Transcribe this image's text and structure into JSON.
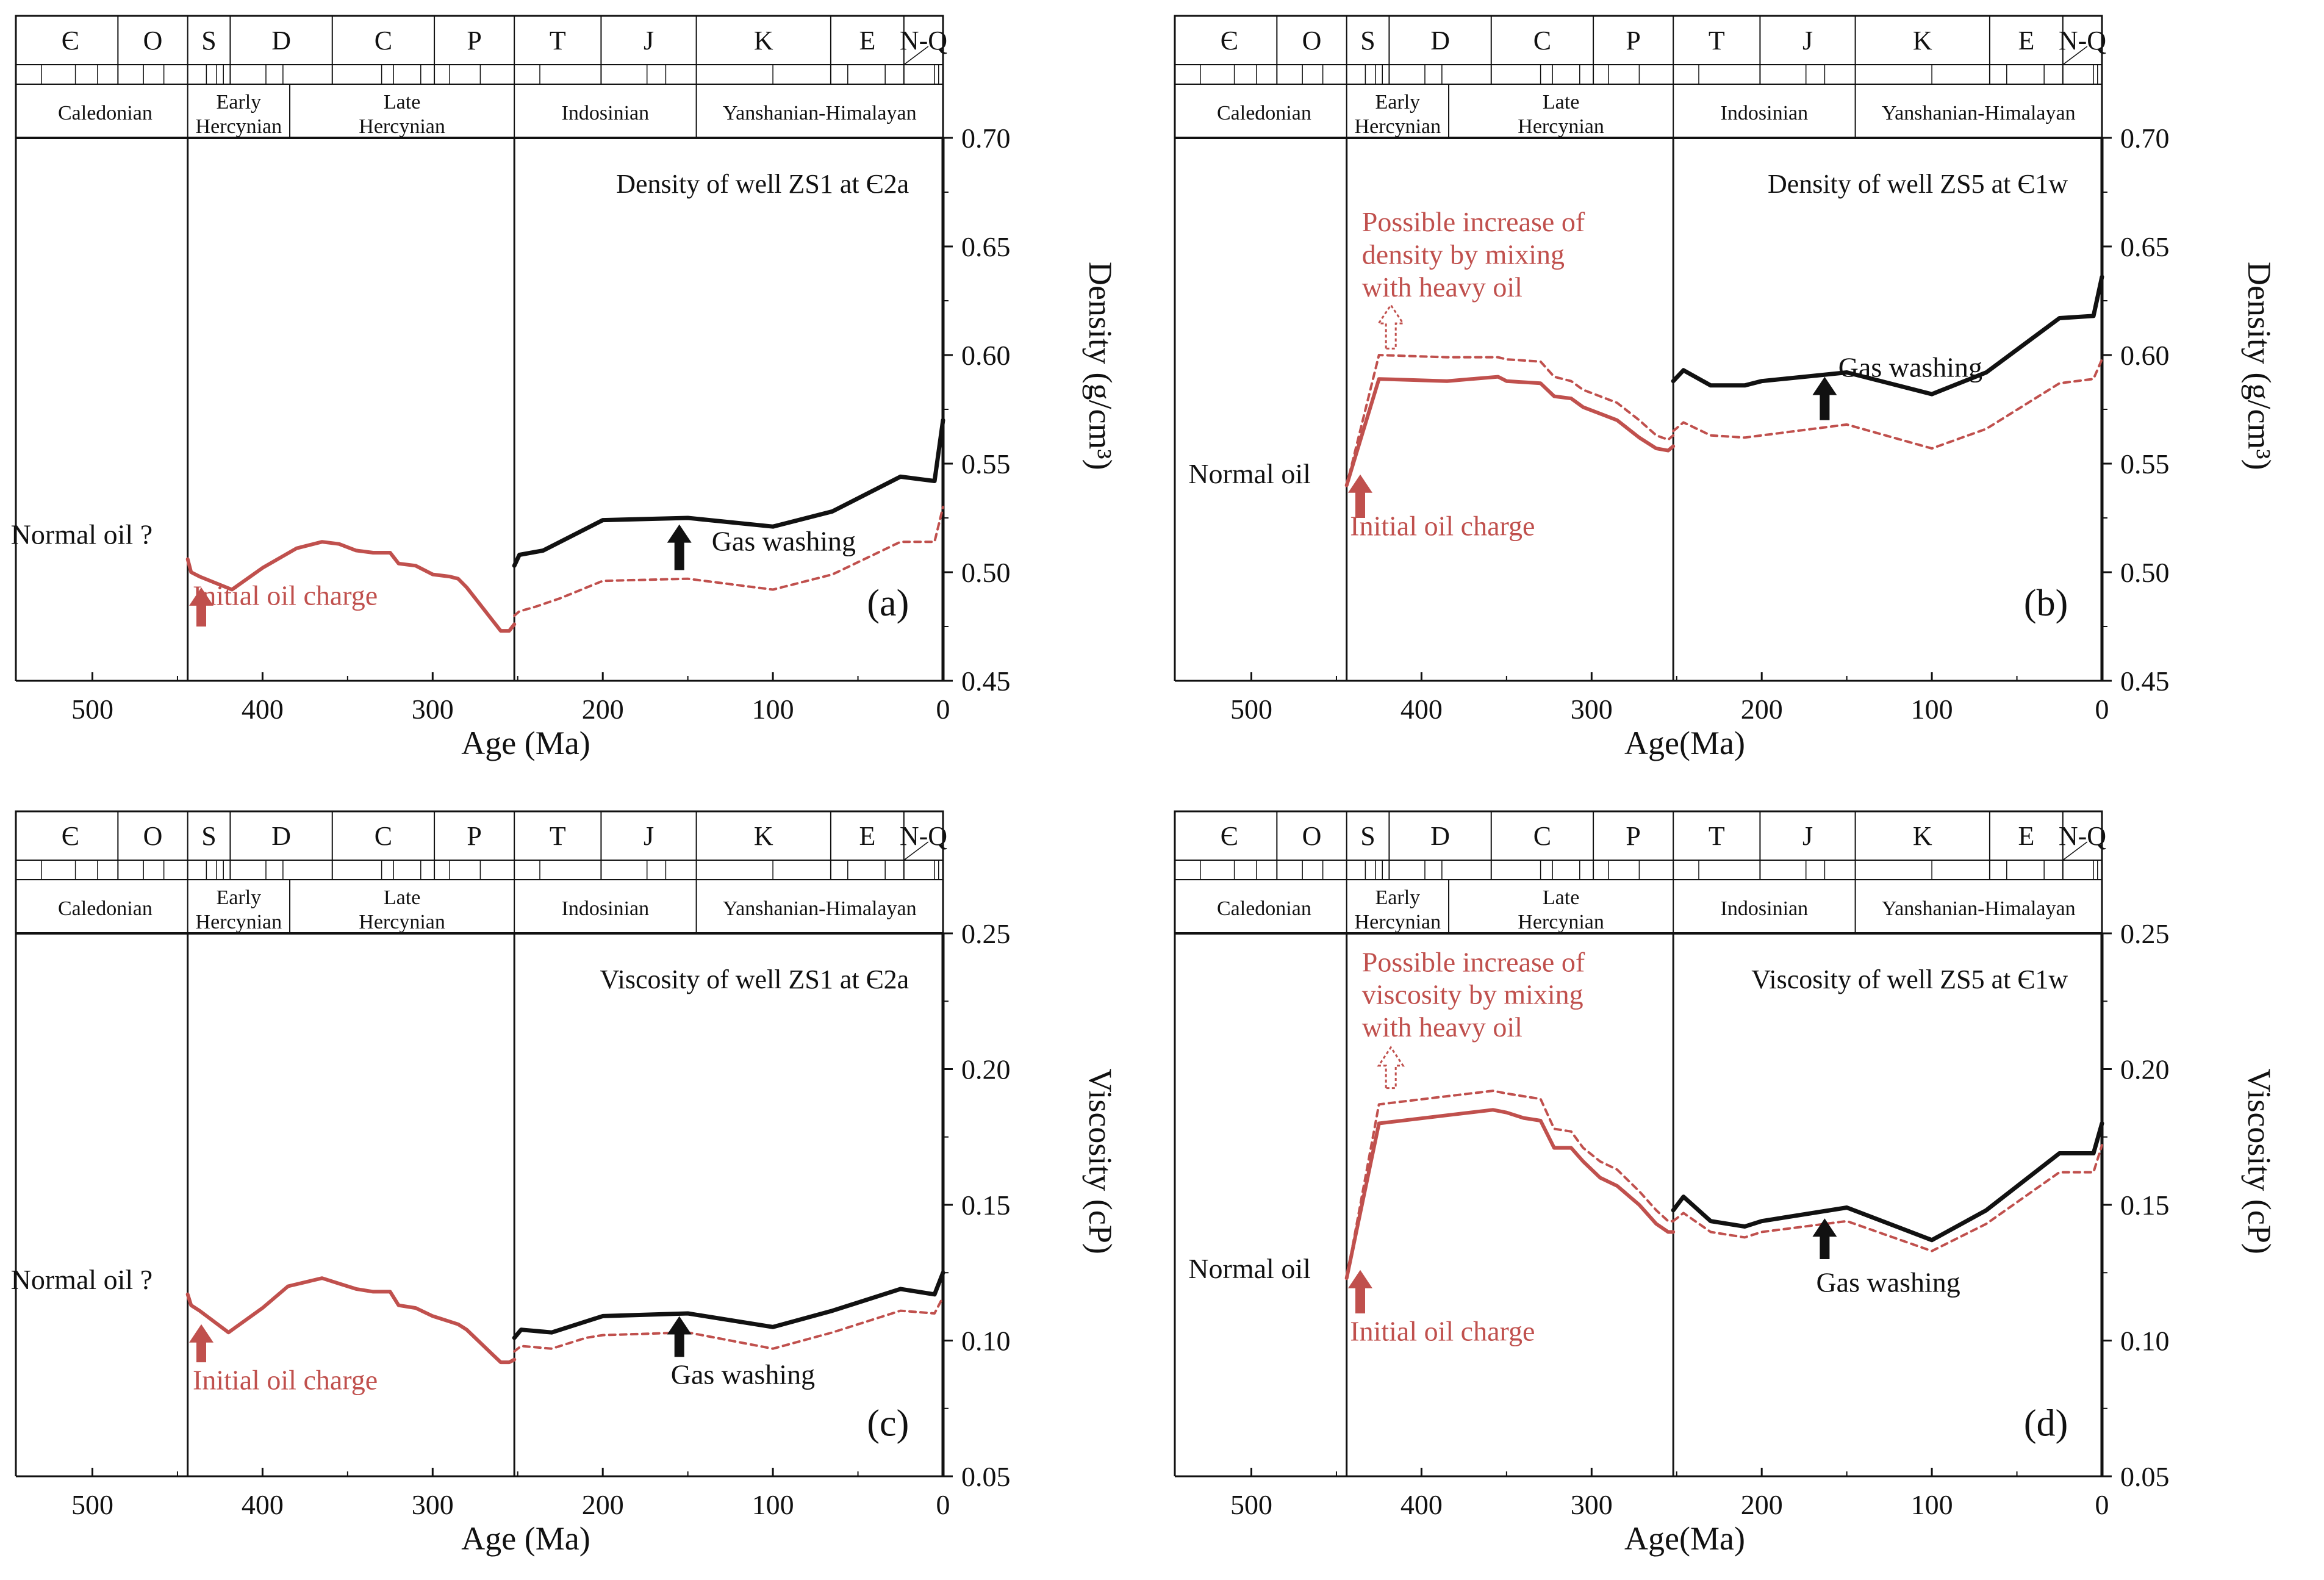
{
  "colors": {
    "black": "#111111",
    "red": "#c0504d"
  },
  "chart_data": [
    {
      "panel": "a",
      "type": "line",
      "title": "Density of well ZS1 at Є2a",
      "xlabel": "Age (Ma)",
      "ylabel": "Density (g/cm³)",
      "xlim": [
        545,
        0
      ],
      "ylim": [
        0.45,
        0.7
      ],
      "xticks": [
        500,
        400,
        300,
        200,
        100,
        0
      ],
      "yticks": [
        0.45,
        0.5,
        0.55,
        0.6,
        0.65,
        0.7
      ],
      "ytick_labels": [
        "0.45",
        "0.50",
        "0.55",
        "0.60",
        "0.65",
        "0.70"
      ],
      "periods": [
        "Є",
        "O",
        "S",
        "D",
        "C",
        "P",
        "T",
        "J",
        "K",
        "E",
        "N-Q"
      ],
      "orogenies": [
        "Caledonian",
        "Early Hercynian",
        "Late Hercynian",
        "Indosinian",
        "Yanshanian-Himalayan"
      ],
      "vlines": [
        444,
        252
      ],
      "series": [
        {
          "name": "Initial oil (solid red)",
          "style": "red-solid",
          "x": [
            444,
            442,
            437,
            418,
            400,
            380,
            365,
            355,
            345,
            335,
            325,
            320,
            310,
            300,
            290,
            285,
            280,
            270,
            265,
            260,
            255,
            252
          ],
          "y": [
            0.506,
            0.5,
            0.498,
            0.492,
            0.502,
            0.511,
            0.514,
            0.513,
            0.51,
            0.509,
            0.509,
            0.504,
            0.503,
            0.499,
            0.498,
            0.497,
            0.493,
            0.483,
            0.478,
            0.473,
            0.473,
            0.476
          ]
        },
        {
          "name": "After gas washing (solid black)",
          "style": "black-solid",
          "x": [
            252,
            249,
            235,
            200,
            150,
            100,
            65,
            25,
            5,
            0
          ],
          "y": [
            0.503,
            0.508,
            0.51,
            0.524,
            0.525,
            0.521,
            0.528,
            0.544,
            0.542,
            0.57
          ]
        },
        {
          "name": "Without gas washing (dashed red)",
          "style": "red-dashed",
          "x": [
            252,
            249,
            240,
            225,
            200,
            150,
            100,
            65,
            25,
            5,
            0
          ],
          "y": [
            0.48,
            0.482,
            0.484,
            0.488,
            0.496,
            0.497,
            0.492,
            0.499,
            0.514,
            0.514,
            0.53
          ]
        }
      ],
      "annotations": [
        {
          "name": "normal-oil",
          "text": "Normal oil ?",
          "x": 548,
          "y": 0.513,
          "anchor": "start",
          "color": "black"
        },
        {
          "name": "initial-oil-charge",
          "text": "Initial oil charge",
          "x": 441,
          "y": 0.485,
          "anchor": "start",
          "color": "red"
        },
        {
          "name": "gas-washing",
          "text": "Gas washing",
          "x": 136,
          "y": 0.51,
          "anchor": "start",
          "color": "black"
        },
        {
          "name": "panel-letter",
          "text": "(a)",
          "x": 20,
          "y": 0.48,
          "anchor": "end",
          "color": "black"
        }
      ],
      "arrows": [
        {
          "name": "initial-oil-charge-arrow",
          "style": "red-solid",
          "x": 436,
          "y_base": 0.475,
          "y_tip": 0.493
        },
        {
          "name": "gas-washing-arrow",
          "style": "black-solid",
          "x": 155,
          "y_base": 0.501,
          "y_tip": 0.522
        }
      ]
    },
    {
      "panel": "b",
      "type": "line",
      "title": "Density of well ZS5 at Є1w",
      "xlabel": "Age(Ma)",
      "ylabel": "Density (g/cm³)",
      "xlim": [
        545,
        0
      ],
      "ylim": [
        0.45,
        0.7
      ],
      "xticks": [
        500,
        400,
        300,
        200,
        100,
        0
      ],
      "yticks": [
        0.45,
        0.5,
        0.55,
        0.6,
        0.65,
        0.7
      ],
      "ytick_labels": [
        "0.45",
        "0.50",
        "0.55",
        "0.60",
        "0.65",
        "0.70"
      ],
      "periods": [
        "Є",
        "O",
        "S",
        "D",
        "C",
        "P",
        "T",
        "J",
        "K",
        "E",
        "N-Q"
      ],
      "orogenies": [
        "Caledonian",
        "Early Hercynian",
        "Late Hercynian",
        "Indosinian",
        "Yanshanian-Himalayan"
      ],
      "vlines": [
        444,
        252
      ],
      "series": [
        {
          "name": "Oil (solid red)",
          "style": "red-solid",
          "x": [
            444,
            425,
            385,
            355,
            350,
            330,
            322,
            312,
            305,
            295,
            285,
            272,
            262,
            255,
            252
          ],
          "y": [
            0.54,
            0.589,
            0.588,
            0.59,
            0.588,
            0.587,
            0.581,
            0.58,
            0.576,
            0.573,
            0.57,
            0.562,
            0.557,
            0.556,
            0.558
          ]
        },
        {
          "name": "Mixed with heavy oil (dashed red)",
          "style": "red-dashed",
          "x": [
            444,
            425,
            385,
            355,
            350,
            330,
            322,
            312,
            305,
            295,
            285,
            272,
            262,
            255,
            252
          ],
          "y": [
            0.54,
            0.6,
            0.599,
            0.599,
            0.598,
            0.597,
            0.59,
            0.588,
            0.584,
            0.581,
            0.578,
            0.57,
            0.563,
            0.561,
            0.563
          ]
        },
        {
          "name": "After gas washing (solid black)",
          "style": "black-solid",
          "x": [
            252,
            246,
            230,
            210,
            200,
            150,
            100,
            68,
            25,
            5,
            0
          ],
          "y": [
            0.588,
            0.593,
            0.586,
            0.586,
            0.588,
            0.592,
            0.582,
            0.592,
            0.617,
            0.618,
            0.636
          ]
        },
        {
          "name": "Without gas washing (dashed red)",
          "style": "red-dashed",
          "x": [
            252,
            246,
            230,
            210,
            200,
            150,
            100,
            68,
            25,
            5,
            0
          ],
          "y": [
            0.565,
            0.569,
            0.563,
            0.562,
            0.563,
            0.568,
            0.557,
            0.566,
            0.587,
            0.589,
            0.598
          ]
        }
      ],
      "annotations": [
        {
          "name": "possible-increase-line1",
          "text": "Possible increase of",
          "x": 435,
          "y": 0.657,
          "anchor": "start",
          "color": "red"
        },
        {
          "name": "possible-increase-line2",
          "text": "density by mixing",
          "x": 435,
          "y": 0.642,
          "anchor": "start",
          "color": "red"
        },
        {
          "name": "possible-increase-line3",
          "text": "with heavy oil",
          "x": 435,
          "y": 0.627,
          "anchor": "start",
          "color": "red"
        },
        {
          "name": "normal-oil",
          "text": "Normal oil",
          "x": 537,
          "y": 0.541,
          "anchor": "start",
          "color": "black"
        },
        {
          "name": "initial-oil-charge",
          "text": "Initial oil charge",
          "x": 442,
          "y": 0.517,
          "anchor": "start",
          "color": "red"
        },
        {
          "name": "gas-washing",
          "text": "Gas washing",
          "x": 155,
          "y": 0.59,
          "anchor": "start",
          "color": "black"
        },
        {
          "name": "panel-letter",
          "text": "(b)",
          "x": 20,
          "y": 0.48,
          "anchor": "end",
          "color": "black"
        }
      ],
      "arrows": [
        {
          "name": "initial-oil-charge-arrow",
          "style": "red-solid",
          "x": 436,
          "y_base": 0.525,
          "y_tip": 0.545
        },
        {
          "name": "gas-washing-arrow",
          "style": "black-solid",
          "x": 163,
          "y_base": 0.57,
          "y_tip": 0.59
        },
        {
          "name": "possible-increase-arrow",
          "style": "red-hollow",
          "x": 418,
          "y_base": 0.603,
          "y_tip": 0.623
        }
      ]
    },
    {
      "panel": "c",
      "type": "line",
      "title": "Viscosity of well ZS1 at Є2a",
      "xlabel": "Age (Ma)",
      "ylabel": "Viscosity (cP)",
      "xlim": [
        545,
        0
      ],
      "ylim": [
        0.05,
        0.25
      ],
      "xticks": [
        500,
        400,
        300,
        200,
        100,
        0
      ],
      "yticks": [
        0.05,
        0.1,
        0.15,
        0.2,
        0.25
      ],
      "ytick_labels": [
        "0.05",
        "0.10",
        "0.15",
        "0.20",
        "0.25"
      ],
      "periods": [
        "Є",
        "O",
        "S",
        "D",
        "C",
        "P",
        "T",
        "J",
        "K",
        "E",
        "N-Q"
      ],
      "orogenies": [
        "Caledonian",
        "Early Hercynian",
        "Late Hercynian",
        "Indosinian",
        "Yanshanian-Himalayan"
      ],
      "vlines": [
        444,
        252
      ],
      "series": [
        {
          "name": "Initial oil (solid red)",
          "style": "red-solid",
          "x": [
            444,
            442,
            437,
            420,
            400,
            385,
            365,
            355,
            345,
            335,
            325,
            320,
            310,
            300,
            290,
            285,
            280,
            270,
            265,
            260,
            255,
            252
          ],
          "y": [
            0.117,
            0.113,
            0.111,
            0.103,
            0.112,
            0.12,
            0.123,
            0.121,
            0.119,
            0.118,
            0.118,
            0.113,
            0.112,
            0.109,
            0.107,
            0.106,
            0.104,
            0.098,
            0.095,
            0.092,
            0.092,
            0.093
          ]
        },
        {
          "name": "After gas washing (solid black)",
          "style": "black-solid",
          "x": [
            252,
            248,
            230,
            210,
            200,
            150,
            100,
            65,
            25,
            5,
            0
          ],
          "y": [
            0.101,
            0.104,
            0.103,
            0.107,
            0.109,
            0.11,
            0.105,
            0.111,
            0.119,
            0.117,
            0.125
          ]
        },
        {
          "name": "Without gas washing (dashed red)",
          "style": "red-dashed",
          "x": [
            252,
            248,
            230,
            210,
            200,
            150,
            100,
            65,
            25,
            5,
            0
          ],
          "y": [
            0.096,
            0.098,
            0.097,
            0.101,
            0.102,
            0.103,
            0.097,
            0.103,
            0.111,
            0.11,
            0.116
          ]
        }
      ],
      "annotations": [
        {
          "name": "normal-oil",
          "text": "Normal oil ?",
          "x": 548,
          "y": 0.119,
          "anchor": "start",
          "color": "black"
        },
        {
          "name": "initial-oil-charge",
          "text": "Initial oil charge",
          "x": 441,
          "y": 0.082,
          "anchor": "start",
          "color": "red"
        },
        {
          "name": "gas-washing",
          "text": "Gas washing",
          "x": 160,
          "y": 0.084,
          "anchor": "start",
          "color": "black"
        },
        {
          "name": "panel-letter",
          "text": "(c)",
          "x": 20,
          "y": 0.065,
          "anchor": "end",
          "color": "black"
        }
      ],
      "arrows": [
        {
          "name": "initial-oil-charge-arrow",
          "style": "red-solid",
          "x": 436,
          "y_base": 0.092,
          "y_tip": 0.106
        },
        {
          "name": "gas-washing-arrow",
          "style": "black-solid",
          "x": 155,
          "y_base": 0.094,
          "y_tip": 0.109
        }
      ]
    },
    {
      "panel": "d",
      "type": "line",
      "title": "Viscosity of well ZS5 at Є1w",
      "xlabel": "Age(Ma)",
      "ylabel": "Viscosity (cP)",
      "xlim": [
        545,
        0
      ],
      "ylim": [
        0.05,
        0.25
      ],
      "xticks": [
        500,
        400,
        300,
        200,
        100,
        0
      ],
      "yticks": [
        0.05,
        0.1,
        0.15,
        0.2,
        0.25
      ],
      "ytick_labels": [
        "0.05",
        "0.10",
        "0.15",
        "0.20",
        "0.25"
      ],
      "periods": [
        "Є",
        "O",
        "S",
        "D",
        "C",
        "P",
        "T",
        "J",
        "K",
        "E",
        "N-Q"
      ],
      "orogenies": [
        "Caledonian",
        "Early Hercynian",
        "Late Hercynian",
        "Indosinian",
        "Yanshanian-Himalayan"
      ],
      "vlines": [
        444,
        252
      ],
      "series": [
        {
          "name": "Oil (solid red)",
          "style": "red-solid",
          "x": [
            444,
            425,
            385,
            358,
            350,
            340,
            330,
            322,
            312,
            305,
            295,
            285,
            272,
            262,
            255,
            252
          ],
          "y": [
            0.123,
            0.18,
            0.183,
            0.185,
            0.184,
            0.182,
            0.181,
            0.171,
            0.171,
            0.166,
            0.16,
            0.157,
            0.15,
            0.143,
            0.14,
            0.14
          ]
        },
        {
          "name": "Mixed with heavy oil (dashed red)",
          "style": "red-dashed",
          "x": [
            444,
            425,
            385,
            358,
            350,
            340,
            330,
            322,
            312,
            305,
            295,
            285,
            272,
            262,
            255,
            252
          ],
          "y": [
            0.123,
            0.187,
            0.19,
            0.192,
            0.191,
            0.19,
            0.189,
            0.178,
            0.177,
            0.171,
            0.166,
            0.163,
            0.155,
            0.148,
            0.144,
            0.144
          ]
        },
        {
          "name": "After gas washing (solid black)",
          "style": "black-solid",
          "x": [
            252,
            246,
            230,
            210,
            200,
            150,
            100,
            68,
            25,
            5,
            0
          ],
          "y": [
            0.148,
            0.153,
            0.144,
            0.142,
            0.144,
            0.149,
            0.137,
            0.148,
            0.169,
            0.169,
            0.18
          ]
        },
        {
          "name": "Without gas washing (dashed red)",
          "style": "red-dashed",
          "x": [
            252,
            246,
            230,
            210,
            200,
            150,
            100,
            68,
            25,
            5,
            0
          ],
          "y": [
            0.144,
            0.147,
            0.14,
            0.138,
            0.14,
            0.144,
            0.133,
            0.143,
            0.162,
            0.162,
            0.172
          ]
        }
      ],
      "annotations": [
        {
          "name": "possible-increase-line1",
          "text": "Possible increase of",
          "x": 435,
          "y": 0.236,
          "anchor": "start",
          "color": "red"
        },
        {
          "name": "possible-increase-line2",
          "text": "viscosity by mixing",
          "x": 435,
          "y": 0.224,
          "anchor": "start",
          "color": "red"
        },
        {
          "name": "possible-increase-line3",
          "text": "with heavy oil",
          "x": 435,
          "y": 0.212,
          "anchor": "start",
          "color": "red"
        },
        {
          "name": "normal-oil",
          "text": "Normal oil",
          "x": 537,
          "y": 0.123,
          "anchor": "start",
          "color": "black"
        },
        {
          "name": "initial-oil-charge",
          "text": "Initial oil charge",
          "x": 442,
          "y": 0.1,
          "anchor": "start",
          "color": "red"
        },
        {
          "name": "gas-washing",
          "text": "Gas washing",
          "x": 168,
          "y": 0.118,
          "anchor": "start",
          "color": "black"
        },
        {
          "name": "panel-letter",
          "text": "(d)",
          "x": 20,
          "y": 0.065,
          "anchor": "end",
          "color": "black"
        }
      ],
      "arrows": [
        {
          "name": "initial-oil-charge-arrow",
          "style": "red-solid",
          "x": 436,
          "y_base": 0.11,
          "y_tip": 0.126
        },
        {
          "name": "gas-washing-arrow",
          "style": "black-solid",
          "x": 163,
          "y_base": 0.13,
          "y_tip": 0.145
        },
        {
          "name": "possible-increase-arrow",
          "style": "red-hollow",
          "x": 418,
          "y_base": 0.193,
          "y_tip": 0.208
        }
      ]
    }
  ]
}
